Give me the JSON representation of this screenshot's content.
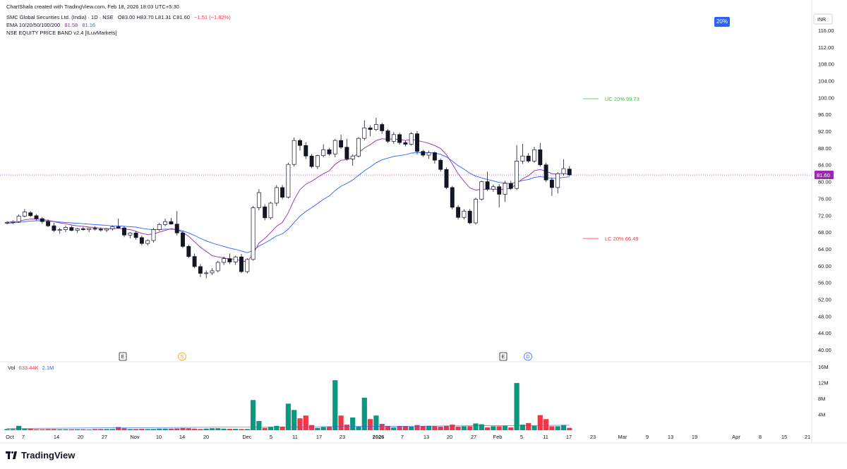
{
  "header": {
    "created_by": "ChartShala created with TradingView.com, Feb 18, 2026 18:03 UTC+5:30",
    "symbol": "SMC Global Securities Ltd. (India) · 1D · NSE",
    "ohlc": "O83.00  H83.70  L81.31  C81.60",
    "change": "−1.51 (−1.82%)",
    "ema_label": "EMA 10/20/50/100/200",
    "ema_val1": "81.58",
    "ema_val2": "81.16",
    "indicator": "NSE EQUITY PRICE BAND v2.4 [ILuvMarkets]"
  },
  "badge": {
    "pct": "20%"
  },
  "currency": "INR",
  "price_axis": {
    "ticks": [
      "116.00",
      "112.00",
      "108.00",
      "104.00",
      "100.00",
      "96.00",
      "92.00",
      "88.00",
      "84.00",
      "80.00",
      "76.00",
      "72.00",
      "68.00",
      "64.00",
      "60.00",
      "56.00",
      "52.00",
      "48.00",
      "44.00",
      "40.00"
    ],
    "last_price": "81.60"
  },
  "bands": {
    "uc": {
      "label": "UC",
      "pct": "20%",
      "value": "99.73"
    },
    "lc": {
      "label": "LC",
      "pct": "20%",
      "value": "66.49"
    }
  },
  "events": [
    "E",
    "S",
    "E",
    "D"
  ],
  "volume_label": {
    "name": "Vol",
    "v1": "633.44K",
    "v2": "2.1M"
  },
  "volume_axis": [
    "16M",
    "12M",
    "8M",
    "4M"
  ],
  "time_axis": [
    "Oct",
    "7",
    "14",
    "20",
    "27",
    "Nov",
    "10",
    "14",
    "20",
    "Dec",
    "5",
    "11",
    "17",
    "23",
    "2026",
    "7",
    "13",
    "20",
    "27",
    "Feb",
    "5",
    "11",
    "17",
    "23",
    "Mar",
    "9",
    "13",
    "19",
    "Apr",
    "8",
    "15",
    "21"
  ],
  "brand": "TradingView",
  "colors": {
    "up": "#089981",
    "down": "#f23645",
    "ema_fast": "#9c27b0",
    "ema_slow": "#2962ff",
    "accent": "#2962ff",
    "last_price_line": "#9c27b0"
  },
  "chart_data": {
    "type": "candlestick",
    "ylim": [
      40,
      116
    ],
    "ohlc": [
      [
        70.2,
        70.6,
        69.8,
        70.3
      ],
      [
        70.3,
        70.8,
        69.9,
        70.5
      ],
      [
        70.5,
        72.2,
        70.2,
        71.8
      ],
      [
        71.8,
        73.5,
        71.5,
        72.8
      ],
      [
        72.6,
        73.0,
        71.6,
        71.9
      ],
      [
        71.9,
        72.3,
        70.8,
        71.2
      ],
      [
        71.2,
        71.6,
        70.0,
        70.5
      ],
      [
        70.5,
        71.0,
        69.2,
        69.5
      ],
      [
        69.5,
        70.2,
        68.0,
        68.4
      ],
      [
        68.4,
        69.0,
        67.6,
        68.6
      ],
      [
        68.6,
        69.6,
        68.0,
        69.1
      ],
      [
        69.1,
        69.5,
        68.2,
        68.4
      ],
      [
        68.4,
        69.0,
        67.8,
        68.8
      ],
      [
        68.8,
        69.3,
        68.3,
        68.6
      ],
      [
        68.6,
        69.0,
        68.0,
        68.9
      ],
      [
        68.9,
        69.4,
        68.4,
        68.7
      ],
      [
        68.7,
        69.1,
        68.1,
        68.5
      ],
      [
        68.5,
        69.0,
        68.0,
        68.8
      ],
      [
        68.8,
        69.6,
        68.4,
        69.3
      ],
      [
        69.3,
        71.2,
        68.8,
        69.0
      ],
      [
        69.0,
        69.4,
        66.8,
        67.3
      ],
      [
        67.3,
        68.0,
        66.5,
        67.8
      ],
      [
        67.8,
        68.2,
        66.2,
        66.7
      ],
      [
        66.7,
        67.2,
        64.8,
        65.3
      ],
      [
        65.3,
        66.3,
        64.8,
        66.0
      ],
      [
        66.0,
        69.0,
        65.5,
        68.6
      ],
      [
        68.6,
        70.2,
        68.2,
        69.8
      ],
      [
        69.8,
        71.2,
        69.4,
        70.5
      ],
      [
        70.5,
        71.4,
        69.8,
        69.9
      ],
      [
        69.9,
        73.0,
        67.2,
        67.8
      ],
      [
        67.8,
        68.3,
        64.2,
        64.6
      ],
      [
        64.6,
        65.0,
        61.8,
        62.2
      ],
      [
        62.2,
        62.9,
        59.4,
        59.8
      ],
      [
        59.8,
        60.4,
        57.3,
        58.2
      ],
      [
        58.2,
        58.9,
        57.0,
        58.3
      ],
      [
        58.3,
        59.4,
        57.8,
        58.8
      ],
      [
        58.8,
        61.2,
        58.4,
        60.8
      ],
      [
        60.8,
        62.2,
        60.2,
        61.7
      ],
      [
        61.7,
        62.9,
        60.4,
        60.9
      ],
      [
        60.9,
        62.4,
        60.2,
        62.1
      ],
      [
        62.1,
        62.8,
        58.2,
        58.6
      ],
      [
        58.6,
        61.8,
        58.2,
        61.5
      ],
      [
        61.5,
        74.2,
        61.2,
        73.8
      ],
      [
        73.8,
        78.2,
        73.2,
        77.4
      ],
      [
        74.0,
        74.6,
        70.8,
        71.4
      ],
      [
        71.4,
        75.2,
        71.0,
        74.9
      ],
      [
        74.9,
        79.2,
        74.2,
        78.6
      ],
      [
        78.6,
        79.2,
        75.8,
        76.3
      ],
      [
        76.3,
        84.5,
        76.0,
        84.1
      ],
      [
        84.1,
        90.5,
        83.6,
        89.8
      ],
      [
        89.8,
        90.2,
        87.4,
        88.6
      ],
      [
        88.6,
        89.4,
        85.4,
        86.1
      ],
      [
        86.1,
        86.6,
        83.2,
        83.6
      ],
      [
        83.6,
        86.4,
        83.0,
        86.2
      ],
      [
        86.2,
        88.9,
        85.8,
        87.6
      ],
      [
        87.6,
        88.0,
        86.2,
        86.6
      ],
      [
        86.6,
        90.2,
        85.8,
        89.8
      ],
      [
        89.8,
        91.2,
        87.8,
        88.2
      ],
      [
        88.2,
        90.2,
        85.0,
        85.4
      ],
      [
        85.4,
        86.5,
        83.8,
        86.1
      ],
      [
        86.1,
        90.6,
        85.8,
        90.3
      ],
      [
        90.3,
        94.6,
        89.8,
        92.8
      ],
      [
        92.8,
        93.4,
        90.8,
        92.4
      ],
      [
        92.4,
        95.2,
        92.0,
        93.6
      ],
      [
        93.6,
        94.0,
        91.4,
        92.1
      ],
      [
        92.1,
        92.5,
        89.2,
        89.6
      ],
      [
        89.6,
        91.8,
        89.0,
        91.2
      ],
      [
        91.2,
        91.6,
        88.8,
        89.3
      ],
      [
        89.3,
        89.8,
        88.4,
        88.9
      ],
      [
        88.9,
        91.8,
        88.6,
        91.4
      ],
      [
        91.4,
        92.0,
        86.5,
        87.2
      ],
      [
        87.2,
        87.6,
        85.9,
        86.3
      ],
      [
        86.3,
        87.4,
        85.4,
        86.9
      ],
      [
        86.9,
        87.2,
        84.3,
        85.1
      ],
      [
        85.1,
        85.5,
        82.4,
        82.9
      ],
      [
        82.9,
        83.4,
        78.2,
        78.6
      ],
      [
        78.6,
        79.0,
        73.4,
        73.9
      ],
      [
        73.9,
        74.4,
        71.0,
        71.5
      ],
      [
        71.5,
        73.4,
        71.0,
        73.0
      ],
      [
        73.0,
        73.5,
        69.9,
        70.2
      ],
      [
        70.2,
        76.2,
        69.8,
        75.8
      ],
      [
        75.8,
        80.2,
        75.5,
        80.0
      ],
      [
        80.0,
        82.4,
        77.8,
        78.2
      ],
      [
        78.2,
        79.3,
        77.6,
        78.8
      ],
      [
        78.8,
        79.4,
        73.9,
        77.0
      ],
      [
        77.0,
        80.2,
        75.2,
        79.6
      ],
      [
        79.6,
        80.2,
        78.0,
        78.4
      ],
      [
        78.4,
        88.7,
        78.0,
        84.9
      ],
      [
        84.9,
        89.0,
        84.2,
        86.1
      ],
      [
        86.1,
        86.8,
        84.5,
        84.9
      ],
      [
        84.9,
        88.3,
        84.5,
        87.6
      ],
      [
        87.6,
        89.2,
        83.6,
        84.0
      ],
      [
        84.0,
        84.5,
        79.9,
        80.4
      ],
      [
        80.4,
        81.0,
        76.6,
        78.6
      ],
      [
        78.6,
        82.3,
        77.2,
        81.9
      ],
      [
        81.9,
        85.3,
        81.4,
        83.1
      ],
      [
        83.0,
        83.7,
        81.3,
        81.6
      ]
    ],
    "volume": [
      0.3,
      0.3,
      1.1,
      0.35,
      0.35,
      0.25,
      0.25,
      0.3,
      0.3,
      0.25,
      0.25,
      0.25,
      0.25,
      0.25,
      0.2,
      0.3,
      0.3,
      0.3,
      0.3,
      0.8,
      0.5,
      0.3,
      0.3,
      0.35,
      0.3,
      0.3,
      0.4,
      0.4,
      0.4,
      0.45,
      0.55,
      0.5,
      0.4,
      0.3,
      0.4,
      0.5,
      0.5,
      0.4,
      0.35,
      0.35,
      0.3,
      0.3,
      7.6,
      2.3,
      0.6,
      0.8,
      1.1,
      0.8,
      6.7,
      5.1,
      3.0,
      3.7,
      1.3,
      0.6,
      0.8,
      0.9,
      12.6,
      3.7,
      1.4,
      3.2,
      0.9,
      8.2,
      2.8,
      3.7,
      1.6,
      1.1,
      0.7,
      1.0,
      1.0,
      0.9,
      1.3,
      1.0,
      1.1,
      1.0,
      0.9,
      1.1,
      1.4,
      0.9,
      1.0,
      1.0,
      1.7,
      1.5,
      0.7,
      1.0,
      1.0,
      1.1,
      0.7,
      11.9,
      1.4,
      1.8,
      1.1,
      3.8,
      2.8,
      1.0,
      1.0,
      1.3,
      0.6
    ],
    "ema_fast": [
      70.4,
      70.4,
      70.6,
      70.9,
      71.1,
      71.1,
      71.0,
      70.8,
      70.5,
      70.2,
      70.0,
      69.7,
      69.5,
      69.4,
      69.2,
      69.1,
      68.9,
      68.8,
      68.8,
      68.9,
      68.7,
      68.6,
      68.2,
      67.7,
      67.4,
      67.6,
      68.0,
      68.4,
      68.8,
      68.6,
      67.9,
      67.0,
      65.7,
      64.4,
      63.4,
      62.4,
      62.1,
      61.9,
      61.6,
      61.6,
      61.1,
      61.0,
      62.8,
      65.4,
      66.5,
      67.9,
      69.4,
      70.3,
      72.6,
      75.7,
      78.1,
      79.4,
      80.1,
      81.0,
      81.9,
      82.6,
      84.1,
      85.1,
      85.2,
      85.7,
      86.9,
      88.0,
      88.8,
      89.8,
      90.2,
      90.1,
      90.2,
      90.0,
      89.8,
      90.1,
      89.8,
      89.5,
      89.1,
      88.6,
      87.9,
      86.4,
      84.2,
      81.9,
      80.1,
      78.5,
      78.0,
      78.2,
      78.2,
      78.3,
      78.1,
      78.3,
      78.3,
      79.6,
      80.7,
      81.4,
      82.6,
      82.9,
      82.5,
      81.9,
      81.8,
      82.1,
      81.58
    ],
    "ema_slow": [
      70.1,
      70.2,
      70.3,
      70.5,
      70.6,
      70.7,
      70.7,
      70.6,
      70.5,
      70.4,
      70.3,
      70.2,
      70.1,
      70.0,
      69.9,
      69.8,
      69.7,
      69.6,
      69.5,
      69.5,
      69.4,
      69.3,
      69.2,
      68.9,
      68.7,
      68.6,
      68.6,
      68.7,
      68.7,
      68.6,
      68.3,
      67.8,
      67.2,
      66.5,
      65.9,
      65.4,
      65.0,
      64.6,
      64.2,
      63.9,
      63.5,
      63.1,
      63.6,
      64.7,
      65.4,
      66.2,
      67.1,
      67.6,
      68.7,
      70.3,
      71.8,
      72.9,
      73.8,
      74.8,
      75.8,
      76.6,
      77.9,
      78.9,
      79.6,
      80.4,
      81.5,
      82.6,
      83.5,
      84.5,
      85.2,
      85.6,
      86.0,
      86.2,
      86.4,
      86.8,
      86.9,
      86.9,
      86.9,
      86.8,
      86.5,
      85.9,
      84.9,
      83.8,
      83.0,
      82.0,
      81.3,
      80.9,
      80.5,
      80.2,
      79.8,
      79.7,
      79.5,
      79.9,
      80.3,
      80.5,
      81.0,
      81.2,
      81.0,
      80.8,
      80.8,
      81.0,
      81.16
    ]
  }
}
